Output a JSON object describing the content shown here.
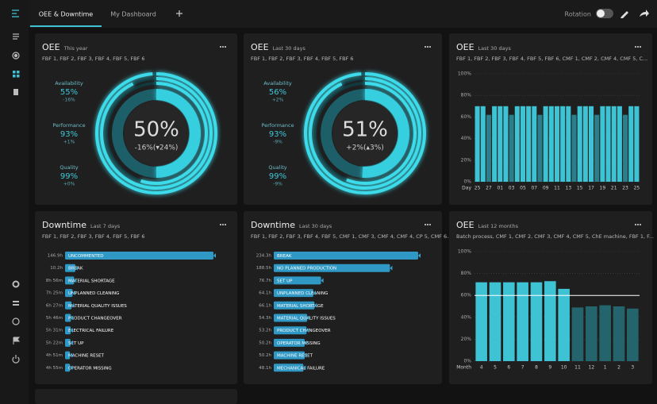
{
  "topbar": {
    "tabs": [
      "OEE & Downtime",
      "My Dashboard"
    ],
    "rotation_label": "Rotation"
  },
  "panels": [
    {
      "kind": "donut",
      "title": "OEE",
      "period": "This year",
      "filter": "FBF 1, FBF 2, FBF 3, FBF 4, FBF 5, FBF 6",
      "value": 50,
      "value_label": "50%",
      "change": "-16%(▾24%)",
      "metrics": [
        {
          "name": "Availability",
          "value": 55,
          "value_label": "55%",
          "change": "-16%"
        },
        {
          "name": "Performance",
          "value": 93,
          "value_label": "93%",
          "change": "+1%"
        },
        {
          "name": "Quality",
          "value": 99,
          "value_label": "99%",
          "change": "+0%"
        }
      ]
    },
    {
      "kind": "donut",
      "title": "OEE",
      "period": "Last 30 days",
      "filter": "FBF 1, FBF 2, FBF 3, FBF 4, FBF 5, FBF 6",
      "value": 51,
      "value_label": "51%",
      "change": "+2%(▴3%)",
      "metrics": [
        {
          "name": "Availability",
          "value": 56,
          "value_label": "56%",
          "change": "+2%"
        },
        {
          "name": "Performance",
          "value": 93,
          "value_label": "93%",
          "change": "-9%"
        },
        {
          "name": "Quality",
          "value": 99,
          "value_label": "99%",
          "change": "-9%"
        }
      ]
    },
    {
      "kind": "bar",
      "title": "OEE",
      "period": "Last 30 days",
      "filter": "FBF 1, FBF 2, FBF 3, FBF 4, FBF 5, FBF 6, CMF 1, CMF 2, CMF 4, CMF 5, C...",
      "x_label": "Day",
      "categories": [
        "25",
        null,
        "27",
        null,
        "01",
        null,
        "03",
        null,
        "05",
        null,
        "07",
        null,
        "09",
        null,
        "11",
        null,
        "13",
        null,
        "15",
        null,
        "17",
        null,
        "19",
        null,
        "21",
        null,
        "23",
        null,
        "25"
      ],
      "values": [
        70,
        70,
        62,
        70,
        70,
        70,
        62,
        70,
        70,
        70,
        70,
        62,
        70,
        70,
        70,
        70,
        70,
        62,
        70,
        70,
        70,
        62,
        70,
        70,
        70,
        70,
        62,
        70,
        70
      ],
      "colors": [
        "#3ec3d4",
        "#3ec3d4",
        "#2a7f8a",
        "#3ec3d4",
        "#3ec3d4",
        "#3ec3d4",
        "#2a7f8a",
        "#3ec3d4",
        "#3ec3d4",
        "#3ec3d4",
        "#3ec3d4",
        "#2a7f8a",
        "#3ec3d4",
        "#3ec3d4",
        "#3ec3d4",
        "#3ec3d4",
        "#3ec3d4",
        "#2a7f8a",
        "#3ec3d4",
        "#3ec3d4",
        "#3ec3d4",
        "#2a7f8a",
        "#3ec3d4",
        "#3ec3d4",
        "#3ec3d4",
        "#3ec3d4",
        "#2a7f8a",
        "#3ec3d4",
        "#3ec3d4"
      ],
      "ylim": [
        0,
        100
      ],
      "yticks": [
        {
          "value": 0,
          "label": "0%"
        },
        {
          "value": 20,
          "label": "20%"
        },
        {
          "value": 40,
          "label": "40%"
        },
        {
          "value": 60,
          "label": "60%"
        },
        {
          "value": 80,
          "label": "80%"
        },
        {
          "value": 100,
          "label": "100%"
        }
      ],
      "grid": true
    },
    {
      "kind": "hbar",
      "title": "Downtime",
      "period": "Last 7 days",
      "filter": "FBF 1, FBF 2, FBF 3, FBF 4, FBF 5, FBF 6",
      "categories": [
        "UNCOMMENTED",
        "BREAK",
        "MATERIAL SHORTAGE",
        "UNPLANNED CLEANING",
        "MATERIAL QUALITY ISSUES",
        "PRODUCT CHANGEOVER",
        "ELECTRICAL FAILURE",
        "SET UP",
        "MACHINE RESET",
        "OPERATOR MISSING"
      ],
      "values": [
        146.9,
        10.2,
        8.93,
        7.42,
        6.45,
        5.77,
        5.52,
        5.37,
        4.85,
        4.92
      ],
      "value_labels": [
        "146.9h",
        "10.2h",
        "8h 56m",
        "7h 25m",
        "6h 27m",
        "5h 46m",
        "5h 31m",
        "5h 22m",
        "4h 51m",
        "4h 55m"
      ],
      "color": "#2f98c4"
    },
    {
      "kind": "hbar",
      "title": "Downtime",
      "period": "Last 30 days",
      "filter": "FBF 1, FBF 2, FBF 3, FBF 4, FBF 5, CMF 1, CMF 3, CMF 4, CMF 4, CP 5, CMF 6...",
      "categories": [
        "BREAK",
        "NO PLANNED PRODUCTION",
        "SET UP",
        "UNPLANNED CLEANING",
        "MATERIAL SHORTAGE",
        "MATERIAL QUALITY ISSUES",
        "PRODUCT CHANGEOVER",
        "OPERATOR MISSING",
        "MACHINE RESET",
        "MECHANICAL FAILURE"
      ],
      "values": [
        234.3,
        188.5,
        76.7,
        64.1,
        66.1,
        54.3,
        53.2,
        50.2,
        50.2,
        48.1
      ],
      "value_labels": [
        "234.3h",
        "188.5h",
        "76.7h",
        "64.1h",
        "66.1h",
        "54.3h",
        "53.2h",
        "50.2h",
        "50.2h",
        "48.1h"
      ],
      "color": "#2f98c4"
    },
    {
      "kind": "bar",
      "title": "OEE",
      "period": "Last 12 months",
      "filter": "Batch process, CMF 1, CMF 2, CMF 3, CMF 4, CMF 5, ChE machine, FBF 1, F...",
      "x_label": "Month",
      "categories": [
        "4",
        "5",
        "6",
        "7",
        "8",
        "9",
        "10",
        "11",
        "12",
        "1",
        "2",
        "3"
      ],
      "values": [
        72,
        72,
        72,
        72,
        72,
        73,
        66,
        49,
        50,
        51,
        50,
        48
      ],
      "colors": [
        "#3ec3d4",
        "#3ec3d4",
        "#3ec3d4",
        "#3ec3d4",
        "#3ec3d4",
        "#3ec3d4",
        "#3ec3d4",
        "#24656d",
        "#24656d",
        "#24656d",
        "#24656d",
        "#24656d"
      ],
      "target": 60,
      "ylim": [
        0,
        100
      ],
      "yticks": [
        {
          "value": 0,
          "label": "0%"
        },
        {
          "value": 20,
          "label": "20%"
        },
        {
          "value": 40,
          "label": "40%"
        },
        {
          "value": 60,
          "label": "60%"
        },
        {
          "value": 80,
          "label": "80%"
        },
        {
          "value": 100,
          "label": "100%"
        }
      ],
      "grid": true
    }
  ]
}
